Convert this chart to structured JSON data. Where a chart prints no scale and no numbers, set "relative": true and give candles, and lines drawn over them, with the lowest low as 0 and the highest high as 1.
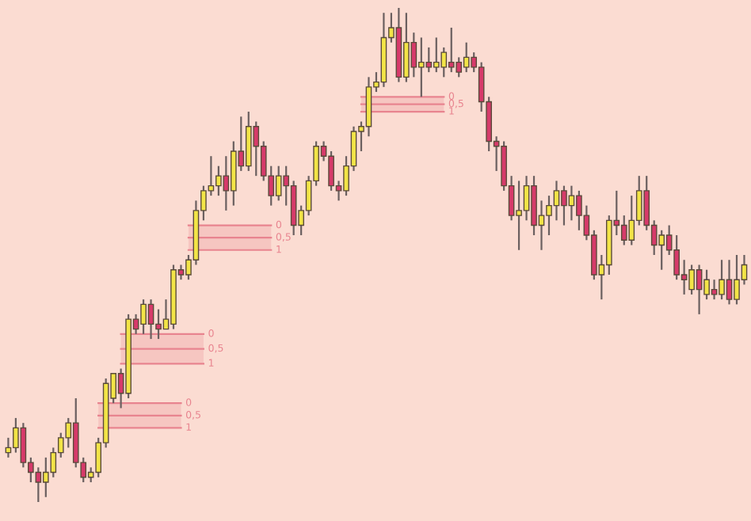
{
  "chart_data": {
    "type": "candlestick",
    "relative": true,
    "categories": [
      null,
      null,
      null,
      null,
      null,
      null,
      null,
      null,
      null,
      null,
      null,
      null,
      null,
      null,
      null,
      null,
      null,
      null,
      null,
      null,
      null,
      null,
      null,
      null,
      null,
      null,
      null,
      null,
      null,
      null,
      null,
      null,
      null,
      null,
      null,
      null,
      null,
      null,
      null,
      null,
      null,
      null,
      null,
      null,
      null,
      null,
      null,
      null,
      null,
      null,
      null,
      null,
      null,
      null,
      null,
      null,
      null,
      null,
      null,
      null,
      null,
      null,
      null,
      null,
      null,
      null,
      null,
      null,
      null,
      null,
      null,
      null,
      null,
      null,
      null,
      null,
      null,
      null,
      null,
      null,
      null,
      null,
      null,
      null,
      null,
      null,
      null,
      null,
      null,
      null,
      null,
      null,
      null,
      null,
      null,
      null,
      null,
      null,
      null
    ],
    "ohlc": [
      [
        0.1,
        0.13,
        0.09,
        0.11
      ],
      [
        0.11,
        0.17,
        0.1,
        0.15
      ],
      [
        0.15,
        0.16,
        0.07,
        0.08
      ],
      [
        0.08,
        0.09,
        0.04,
        0.06
      ],
      [
        0.06,
        0.07,
        0.0,
        0.04
      ],
      [
        0.04,
        0.09,
        0.01,
        0.06
      ],
      [
        0.06,
        0.11,
        0.05,
        0.1
      ],
      [
        0.1,
        0.14,
        0.09,
        0.13
      ],
      [
        0.13,
        0.17,
        0.11,
        0.16
      ],
      [
        0.16,
        0.21,
        0.07,
        0.08
      ],
      [
        0.08,
        0.09,
        0.04,
        0.05
      ],
      [
        0.05,
        0.07,
        0.04,
        0.06
      ],
      [
        0.06,
        0.13,
        0.05,
        0.12
      ],
      [
        0.12,
        0.25,
        0.11,
        0.24
      ],
      [
        0.21,
        0.26,
        0.2,
        0.26
      ],
      [
        0.26,
        0.27,
        0.19,
        0.22
      ],
      [
        0.22,
        0.38,
        0.21,
        0.37
      ],
      [
        0.37,
        0.38,
        0.34,
        0.35
      ],
      [
        0.36,
        0.41,
        0.34,
        0.4
      ],
      [
        0.4,
        0.41,
        0.33,
        0.36
      ],
      [
        0.36,
        0.39,
        0.33,
        0.35
      ],
      [
        0.35,
        0.41,
        0.35,
        0.37
      ],
      [
        0.36,
        0.48,
        0.35,
        0.47
      ],
      [
        0.47,
        0.48,
        0.45,
        0.46
      ],
      [
        0.46,
        0.5,
        0.45,
        0.49
      ],
      [
        0.49,
        0.61,
        0.48,
        0.59
      ],
      [
        0.59,
        0.64,
        0.57,
        0.63
      ],
      [
        0.63,
        0.7,
        0.62,
        0.64
      ],
      [
        0.64,
        0.68,
        0.62,
        0.66
      ],
      [
        0.66,
        0.7,
        0.59,
        0.63
      ],
      [
        0.63,
        0.73,
        0.6,
        0.71
      ],
      [
        0.71,
        0.78,
        0.67,
        0.68
      ],
      [
        0.68,
        0.79,
        0.67,
        0.76
      ],
      [
        0.76,
        0.77,
        0.66,
        0.72
      ],
      [
        0.72,
        0.73,
        0.65,
        0.66
      ],
      [
        0.66,
        0.68,
        0.6,
        0.62
      ],
      [
        0.62,
        0.68,
        0.61,
        0.66
      ],
      [
        0.66,
        0.68,
        0.6,
        0.64
      ],
      [
        0.64,
        0.65,
        0.54,
        0.56
      ],
      [
        0.56,
        0.6,
        0.54,
        0.59
      ],
      [
        0.59,
        0.66,
        0.58,
        0.65
      ],
      [
        0.65,
        0.73,
        0.64,
        0.72
      ],
      [
        0.72,
        0.73,
        0.69,
        0.7
      ],
      [
        0.7,
        0.71,
        0.63,
        0.64
      ],
      [
        0.64,
        0.65,
        0.61,
        0.63
      ],
      [
        0.63,
        0.7,
        0.62,
        0.68
      ],
      [
        0.68,
        0.76,
        0.67,
        0.75
      ],
      [
        0.75,
        0.77,
        0.71,
        0.76
      ],
      [
        0.76,
        0.86,
        0.74,
        0.84
      ],
      [
        0.84,
        0.87,
        0.83,
        0.85
      ],
      [
        0.85,
        0.99,
        0.84,
        0.94
      ],
      [
        0.94,
        0.99,
        0.93,
        0.96
      ],
      [
        0.96,
        1.0,
        0.85,
        0.86
      ],
      [
        0.86,
        0.99,
        0.85,
        0.93
      ],
      [
        0.93,
        0.95,
        0.86,
        0.88
      ],
      [
        0.88,
        0.94,
        0.82,
        0.89
      ],
      [
        0.89,
        0.92,
        0.87,
        0.88
      ],
      [
        0.88,
        0.94,
        0.87,
        0.89
      ],
      [
        0.88,
        0.92,
        0.86,
        0.91
      ],
      [
        0.89,
        0.96,
        0.87,
        0.88
      ],
      [
        0.89,
        0.9,
        0.86,
        0.87
      ],
      [
        0.88,
        0.93,
        0.87,
        0.9
      ],
      [
        0.9,
        0.91,
        0.87,
        0.88
      ],
      [
        0.88,
        0.89,
        0.79,
        0.81
      ],
      [
        0.81,
        0.82,
        0.71,
        0.73
      ],
      [
        0.73,
        0.74,
        0.67,
        0.72
      ],
      [
        0.72,
        0.73,
        0.63,
        0.64
      ],
      [
        0.64,
        0.66,
        0.57,
        0.58
      ],
      [
        0.58,
        0.65,
        0.51,
        0.59
      ],
      [
        0.59,
        0.66,
        0.57,
        0.64
      ],
      [
        0.64,
        0.66,
        0.54,
        0.56
      ],
      [
        0.56,
        0.61,
        0.51,
        0.58
      ],
      [
        0.58,
        0.62,
        0.54,
        0.6
      ],
      [
        0.6,
        0.65,
        0.57,
        0.63
      ],
      [
        0.63,
        0.64,
        0.56,
        0.6
      ],
      [
        0.6,
        0.64,
        0.57,
        0.62
      ],
      [
        0.62,
        0.63,
        0.55,
        0.58
      ],
      [
        0.58,
        0.6,
        0.53,
        0.54
      ],
      [
        0.54,
        0.55,
        0.45,
        0.46
      ],
      [
        0.46,
        0.5,
        0.41,
        0.48
      ],
      [
        0.48,
        0.58,
        0.46,
        0.57
      ],
      [
        0.57,
        0.63,
        0.54,
        0.56
      ],
      [
        0.56,
        0.58,
        0.52,
        0.53
      ],
      [
        0.53,
        0.62,
        0.52,
        0.57
      ],
      [
        0.57,
        0.66,
        0.56,
        0.63
      ],
      [
        0.63,
        0.66,
        0.55,
        0.56
      ],
      [
        0.56,
        0.57,
        0.5,
        0.52
      ],
      [
        0.52,
        0.55,
        0.47,
        0.54
      ],
      [
        0.54,
        0.56,
        0.5,
        0.51
      ],
      [
        0.51,
        0.54,
        0.45,
        0.46
      ],
      [
        0.46,
        0.49,
        0.42,
        0.45
      ],
      [
        0.43,
        0.48,
        0.42,
        0.47
      ],
      [
        0.47,
        0.48,
        0.38,
        0.43
      ],
      [
        0.42,
        0.47,
        0.41,
        0.45
      ],
      [
        0.43,
        0.45,
        0.41,
        0.42
      ],
      [
        0.42,
        0.49,
        0.41,
        0.45
      ],
      [
        0.45,
        0.49,
        0.4,
        0.41
      ],
      [
        0.41,
        0.5,
        0.4,
        0.45
      ],
      [
        0.45,
        0.5,
        0.44,
        0.48
      ]
    ],
    "colors": [
      "#f2e447",
      "#f2e447",
      "#d63a6a",
      "#d63a6a",
      "#d63a6a",
      "#f2e447",
      "#f2e447",
      "#f2e447",
      "#f2e447",
      "#d63a6a",
      "#d63a6a",
      "#f2e447",
      "#f2e447",
      "#f2e447",
      "#f2e447",
      "#d63a6a",
      "#f2e447",
      "#d63a6a",
      "#f2e447",
      "#d63a6a",
      "#d63a6a",
      "#f2e447",
      "#f2e447",
      "#d63a6a",
      "#f2e447",
      "#f2e447",
      "#f2e447",
      "#f2e447",
      "#f2e447",
      "#d63a6a",
      "#f2e447",
      "#d63a6a",
      "#f2e447",
      "#d63a6a",
      "#d63a6a",
      "#d63a6a",
      "#f2e447",
      "#d63a6a",
      "#d63a6a",
      "#f2e447",
      "#f2e447",
      "#f2e447",
      "#d63a6a",
      "#d63a6a",
      "#d63a6a",
      "#f2e447",
      "#f2e447",
      "#f2e447",
      "#f2e447",
      "#f2e447",
      "#f2e447",
      "#f2e447",
      "#d63a6a",
      "#f2e447",
      "#d63a6a",
      "#f2e447",
      "#d63a6a",
      "#f2e447",
      "#f2e447",
      "#d63a6a",
      "#d63a6a",
      "#f2e447",
      "#d63a6a",
      "#d63a6a",
      "#d63a6a",
      "#d63a6a",
      "#d63a6a",
      "#d63a6a",
      "#f2e447",
      "#f2e447",
      "#d63a6a",
      "#f2e447",
      "#f2e447",
      "#f2e447",
      "#d63a6a",
      "#f2e447",
      "#d63a6a",
      "#d63a6a",
      "#d63a6a",
      "#f2e447",
      "#f2e447",
      "#d63a6a",
      "#d63a6a",
      "#f2e447",
      "#f2e447",
      "#d63a6a",
      "#d63a6a",
      "#f2e447",
      "#d63a6a",
      "#d63a6a",
      "#d63a6a",
      "#f2e447",
      "#d63a6a",
      "#f2e447",
      "#d63a6a",
      "#f2e447",
      "#d63a6a",
      "#f2e447",
      "#f2e447"
    ],
    "bands": [
      {
        "axis": "y",
        "from": 0.15,
        "to": 0.2,
        "color": "#e8848f"
      },
      {
        "axis": "y",
        "from": 0.28,
        "to": 0.34,
        "color": "#e8848f"
      },
      {
        "axis": "y",
        "from": 0.51,
        "to": 0.56,
        "color": "#e8848f"
      },
      {
        "axis": "y",
        "from": 0.79,
        "to": 0.82,
        "color": "#e8848f"
      }
    ],
    "annotations": [
      "0",
      "0,5",
      "1",
      "0",
      "0,5",
      "1",
      "0",
      "0,5",
      "1",
      "0",
      "0,5",
      "1"
    ]
  }
}
